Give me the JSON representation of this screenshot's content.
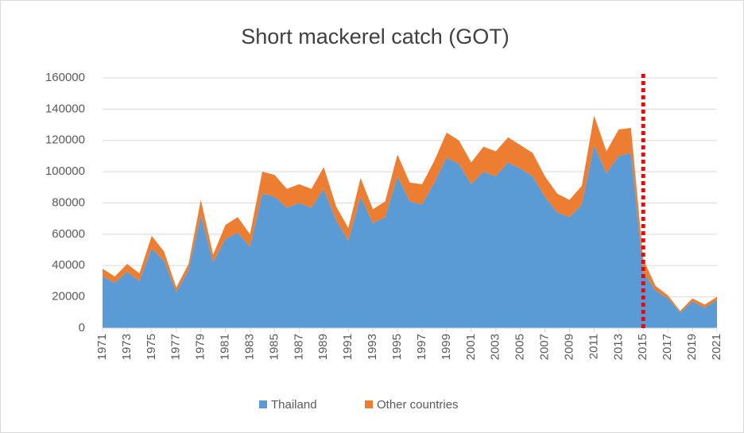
{
  "chart_data": {
    "type": "stacked-area",
    "title": "Short mackerel catch (GOT)",
    "x": [
      1971,
      1972,
      1973,
      1974,
      1975,
      1976,
      1977,
      1978,
      1979,
      1980,
      1981,
      1982,
      1983,
      1984,
      1985,
      1986,
      1987,
      1988,
      1989,
      1990,
      1991,
      1992,
      1993,
      1994,
      1995,
      1996,
      1997,
      1998,
      1999,
      2000,
      2001,
      2002,
      2003,
      2004,
      2005,
      2006,
      2007,
      2008,
      2009,
      2010,
      2011,
      2012,
      2013,
      2014,
      2015,
      2016,
      2017,
      2018,
      2019,
      2020,
      2021
    ],
    "series": [
      {
        "name": "Thailand",
        "color": "#5b9bd5",
        "values": [
          33000,
          29000,
          36000,
          30000,
          51000,
          43000,
          23000,
          37000,
          72000,
          42000,
          57000,
          61000,
          52000,
          86000,
          84000,
          77000,
          80000,
          77000,
          89000,
          69000,
          56000,
          84000,
          67000,
          71000,
          97000,
          81000,
          79000,
          93000,
          109000,
          105000,
          92000,
          100000,
          97000,
          106000,
          102000,
          97000,
          84000,
          74000,
          71000,
          79000,
          117000,
          99000,
          110000,
          112000,
          36000,
          24000,
          19000,
          10000,
          17000,
          13000,
          18000
        ]
      },
      {
        "name": "Other countries",
        "color": "#ed7d31",
        "values": [
          5000,
          4000,
          5000,
          5000,
          8000,
          6000,
          3000,
          4000,
          10000,
          5000,
          9000,
          10000,
          8000,
          14000,
          14000,
          12000,
          12000,
          12000,
          14000,
          9000,
          8000,
          12000,
          9000,
          10000,
          14000,
          12000,
          13000,
          14000,
          16000,
          15000,
          14000,
          16000,
          16000,
          16000,
          15000,
          15000,
          13000,
          12000,
          11000,
          12000,
          19000,
          14000,
          17000,
          16000,
          8000,
          3000,
          2000,
          1000,
          2000,
          2000,
          2000
        ]
      }
    ],
    "xlim": [
      1971,
      2021
    ],
    "xticks": [
      1971,
      1973,
      1975,
      1977,
      1979,
      1981,
      1983,
      1985,
      1987,
      1989,
      1991,
      1993,
      1995,
      1997,
      1999,
      2001,
      2003,
      2005,
      2007,
      2009,
      2011,
      2013,
      2015,
      2017,
      2019,
      2021
    ],
    "ylim": [
      0,
      160000
    ],
    "yticks": [
      0,
      20000,
      40000,
      60000,
      80000,
      100000,
      120000,
      140000,
      160000
    ],
    "grid": true,
    "legend": "bottom",
    "reference_line": {
      "x": 2015,
      "color": "#ff0000"
    }
  }
}
